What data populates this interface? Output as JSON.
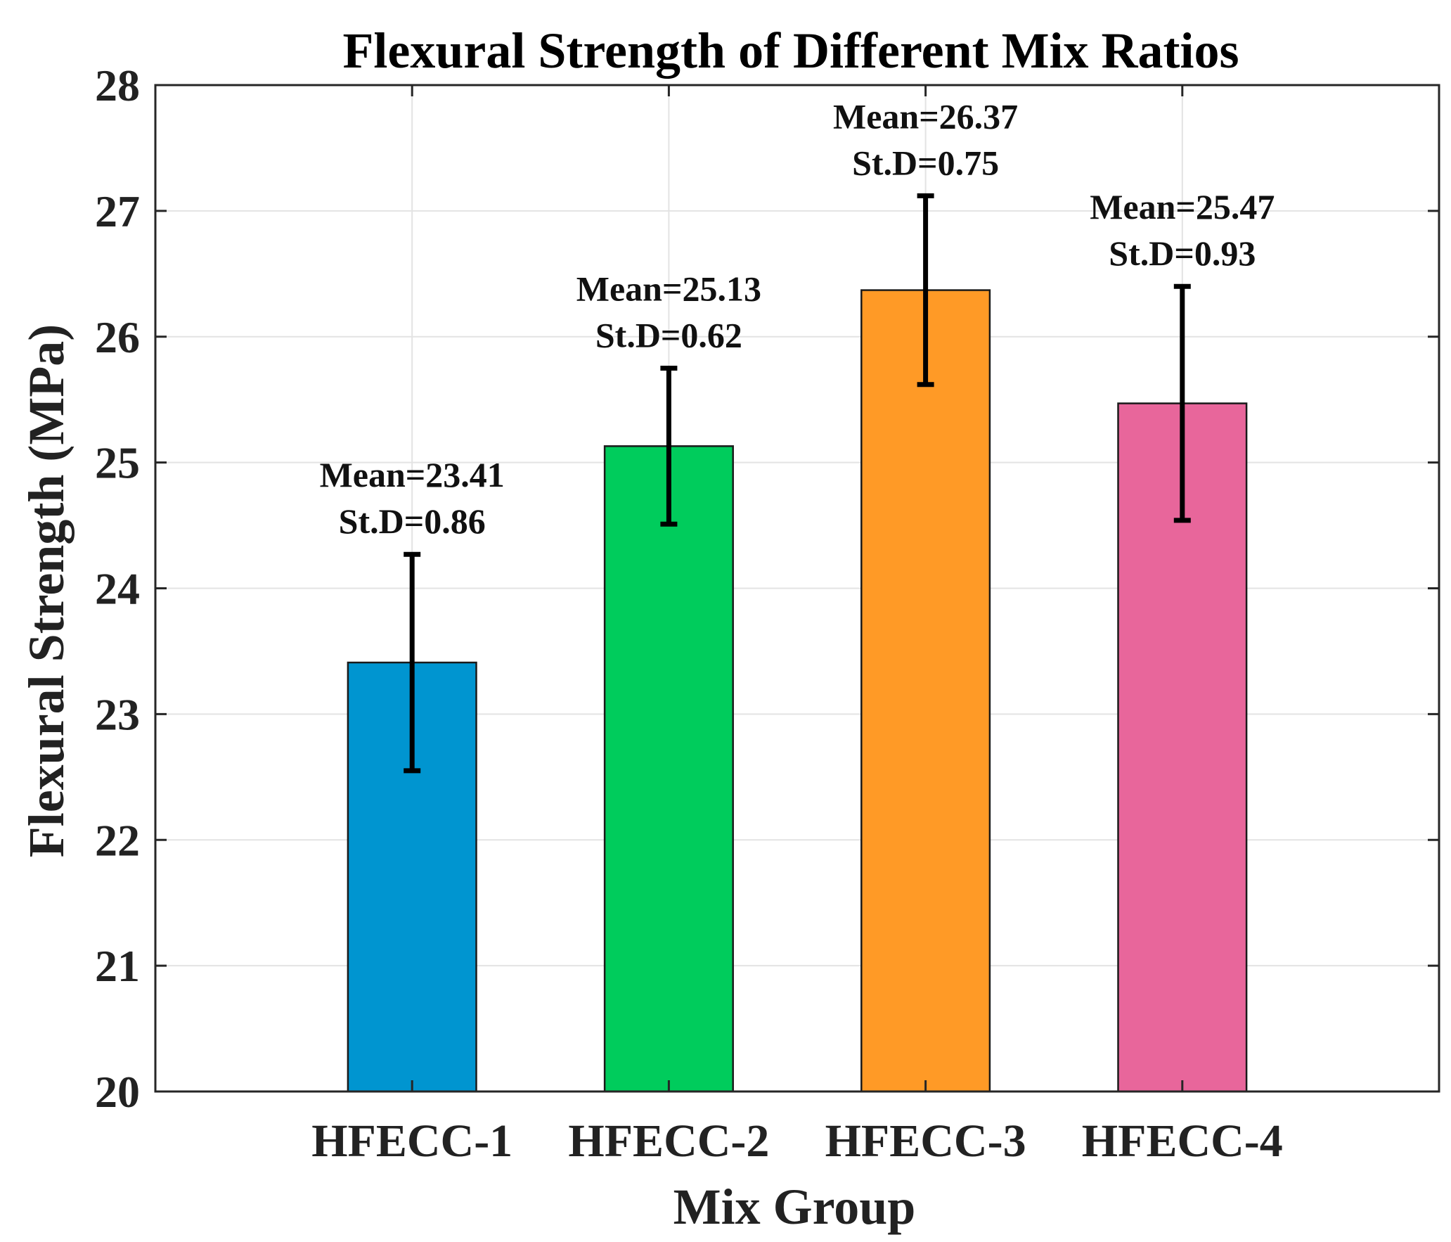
{
  "chart_data": {
    "type": "bar",
    "title": "Flexural Strength of Different Mix Ratios",
    "xlabel": "Mix Group",
    "ylabel": "Flexural Strength (MPa)",
    "ylim": [
      20,
      28
    ],
    "yticks": [
      20,
      21,
      22,
      23,
      24,
      25,
      26,
      27,
      28
    ],
    "grid": true,
    "categories": [
      "HFECC-1",
      "HFECC-2",
      "HFECC-3",
      "HFECC-4"
    ],
    "values": [
      23.41,
      25.13,
      26.37,
      25.47
    ],
    "std": [
      0.86,
      0.62,
      0.75,
      0.93
    ],
    "colors": [
      "#0095d0",
      "#00cc5c",
      "#ff9a26",
      "#e8669b"
    ],
    "annotations": [
      [
        "Mean=23.41",
        "St.D=0.86"
      ],
      [
        "Mean=25.13",
        "St.D=0.62"
      ],
      [
        "Mean=26.37",
        "St.D=0.75"
      ],
      [
        "Mean=25.47",
        "St.D=0.93"
      ]
    ]
  }
}
